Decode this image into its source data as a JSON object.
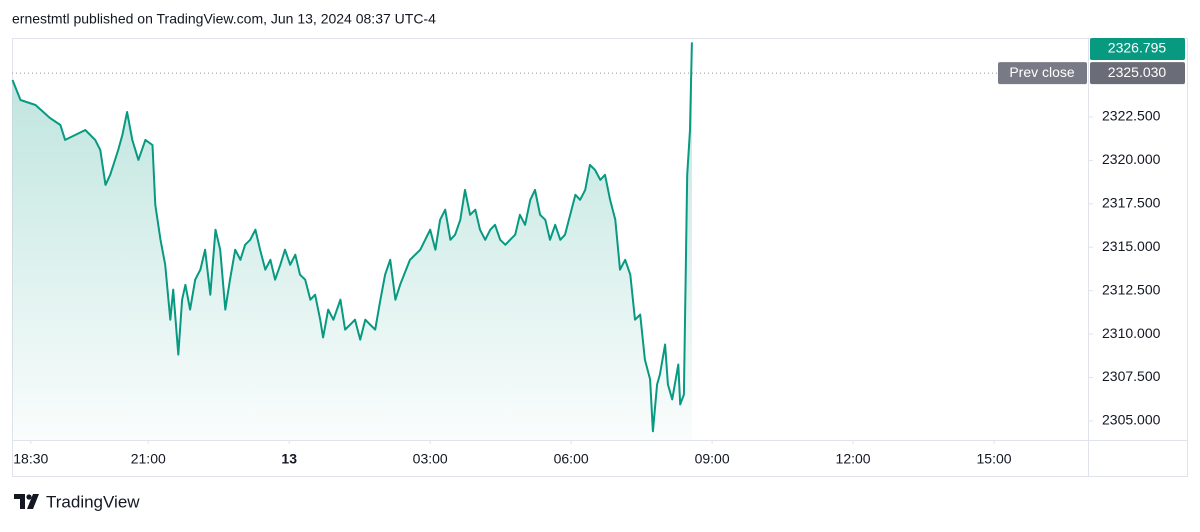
{
  "header": "ernestmtl published on TradingView.com, Jun 13, 2024 08:37 UTC-4",
  "footer": {
    "brand": "TradingView"
  },
  "chart_data": {
    "type": "area",
    "color": "#089981",
    "x": [
      18.11,
      18.28,
      18.6,
      18.91,
      19.13,
      19.23,
      19.45,
      19.66,
      19.87,
      19.98,
      20.09,
      20.19,
      20.36,
      20.45,
      20.55,
      20.66,
      20.79,
      20.94,
      21.09,
      21.15,
      21.26,
      21.36,
      21.47,
      21.53,
      21.64,
      21.72,
      21.79,
      21.89,
      22.0,
      22.11,
      22.21,
      22.32,
      22.43,
      22.53,
      22.64,
      22.74,
      22.85,
      22.96,
      23.06,
      23.17,
      23.28,
      23.38,
      23.49,
      23.6,
      23.7,
      23.81,
      23.91,
      24.02,
      24.13,
      24.23,
      24.34,
      24.45,
      24.55,
      24.66,
      24.72,
      24.83,
      24.94,
      25.09,
      25.19,
      25.3,
      25.4,
      25.51,
      25.62,
      25.72,
      25.83,
      25.94,
      26.04,
      26.15,
      26.26,
      26.36,
      26.57,
      26.79,
      27.0,
      27.11,
      27.21,
      27.32,
      27.43,
      27.53,
      27.64,
      27.74,
      27.85,
      27.96,
      28.06,
      28.17,
      28.28,
      28.38,
      28.49,
      28.6,
      28.7,
      28.81,
      28.91,
      29.02,
      29.13,
      29.23,
      29.34,
      29.45,
      29.55,
      29.66,
      29.77,
      29.87,
      29.98,
      30.09,
      30.19,
      30.3,
      30.4,
      30.51,
      30.62,
      30.72,
      30.83,
      30.94,
      31.04,
      31.15,
      31.26,
      31.36,
      31.47,
      31.57,
      31.68,
      31.74,
      31.83,
      31.89,
      32.0,
      32.06,
      32.15,
      32.28,
      32.32,
      32.4,
      32.47,
      32.53,
      32.57
    ],
    "values": [
      2324.63,
      2323.48,
      2323.19,
      2322.44,
      2322.04,
      2321.18,
      2321.47,
      2321.75,
      2321.18,
      2320.6,
      2318.59,
      2319.17,
      2320.6,
      2321.47,
      2322.79,
      2321.18,
      2320.03,
      2321.18,
      2320.89,
      2317.44,
      2315.43,
      2313.99,
      2310.83,
      2312.56,
      2308.82,
      2311.98,
      2312.84,
      2311.41,
      2313.13,
      2313.71,
      2314.86,
      2312.27,
      2316.01,
      2314.86,
      2311.41,
      2313.13,
      2314.86,
      2314.28,
      2315.14,
      2315.43,
      2316.01,
      2314.86,
      2313.71,
      2314.28,
      2313.13,
      2313.99,
      2314.86,
      2313.99,
      2314.57,
      2313.42,
      2313.13,
      2311.98,
      2312.27,
      2310.83,
      2309.8,
      2311.41,
      2310.83,
      2311.98,
      2310.26,
      2310.55,
      2310.83,
      2309.68,
      2310.83,
      2310.55,
      2310.26,
      2311.98,
      2313.42,
      2314.28,
      2311.98,
      2312.84,
      2314.28,
      2314.86,
      2316.01,
      2314.86,
      2316.58,
      2317.16,
      2315.43,
      2315.72,
      2316.58,
      2318.3,
      2316.87,
      2317.16,
      2316.01,
      2315.43,
      2316.01,
      2316.29,
      2315.43,
      2315.14,
      2315.43,
      2315.72,
      2316.87,
      2316.29,
      2317.73,
      2318.3,
      2316.87,
      2316.58,
      2315.43,
      2316.29,
      2315.43,
      2315.72,
      2316.87,
      2318.02,
      2317.73,
      2318.3,
      2319.74,
      2319.45,
      2318.88,
      2319.17,
      2317.73,
      2316.58,
      2313.71,
      2314.28,
      2313.42,
      2310.83,
      2311.12,
      2308.53,
      2307.39,
      2304.4,
      2307.1,
      2307.67,
      2309.4,
      2307.1,
      2306.24,
      2308.25,
      2305.95,
      2306.52,
      2319.17,
      2321.75,
      2326.795
    ],
    "xlim": [
      18.1,
      41
    ],
    "ylim": [
      2303.9,
      2327.05
    ],
    "xticks": [
      {
        "value": 18.5,
        "label": "18:30"
      },
      {
        "value": 21,
        "label": "21:00"
      },
      {
        "value": 24,
        "label": "13"
      },
      {
        "value": 27,
        "label": "03:00"
      },
      {
        "value": 30,
        "label": "06:00"
      },
      {
        "value": 33,
        "label": "09:00"
      },
      {
        "value": 36,
        "label": "12:00"
      },
      {
        "value": 39,
        "label": "15:00"
      }
    ],
    "yticks": [
      {
        "value": 2305,
        "label": "2305.000"
      },
      {
        "value": 2307.5,
        "label": "2307.500"
      },
      {
        "value": 2310,
        "label": "2310.000"
      },
      {
        "value": 2312.5,
        "label": "2312.500"
      },
      {
        "value": 2315,
        "label": "2315.000"
      },
      {
        "value": 2317.5,
        "label": "2317.500"
      },
      {
        "value": 2320,
        "label": "2320.000"
      },
      {
        "value": 2322.5,
        "label": "2322.500"
      }
    ],
    "prev_close": {
      "value": 2325.03,
      "label": "2325.030"
    },
    "prev_close_label": "Prev close"
  }
}
